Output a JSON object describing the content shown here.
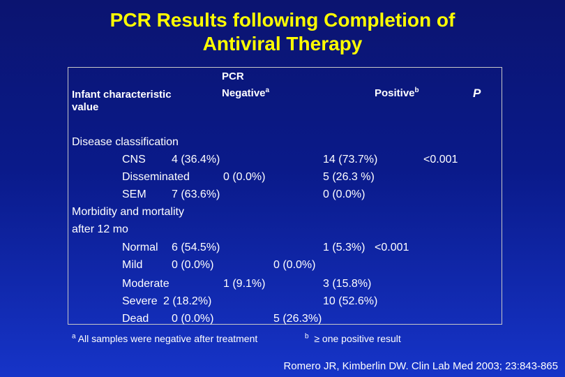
{
  "title": {
    "line1": "PCR Results following Completion of",
    "line2": "Antiviral Therapy"
  },
  "header": {
    "col1_line1": "Infant characteristic",
    "col1_line2": "value",
    "pcr": "PCR",
    "negative": "Negative",
    "negative_sup": "a",
    "positive": "Positive",
    "positive_sup": "b",
    "p": "P"
  },
  "sections": {
    "disease": "Disease classification",
    "morbidity_line1": "Morbidity and mortality",
    "morbidity_line2": "after 12 mo"
  },
  "rows": {
    "cns": {
      "label": "CNS",
      "neg": "4 (36.4%)",
      "pos": "14 (73.7%)",
      "p": "<0.001"
    },
    "disseminated": {
      "label": "Disseminated",
      "neg": "0 (0.0%)",
      "pos": "5 (26.3 %)"
    },
    "sem": {
      "label": "SEM",
      "neg": "7 (63.6%)",
      "pos": "0 (0.0%)"
    },
    "normal": {
      "label": "Normal",
      "neg": "6 (54.5%)",
      "pos": "1 (5.3%)",
      "p": "<0.001"
    },
    "mild": {
      "label": "Mild",
      "neg": "0 (0.0%)",
      "pos": "0 (0.0%)"
    },
    "moderate": {
      "label": "Moderate",
      "neg": "1 (9.1%)",
      "pos": "3 (15.8%)"
    },
    "severe": {
      "label": "Severe",
      "neg": "2 (18.2%)",
      "pos": "10 (52.6%)"
    },
    "dead": {
      "label": "Dead",
      "neg": "0 (0.0%)",
      "pos": "5 (26.3%)"
    }
  },
  "footnotes": {
    "a_sup": "a",
    "a_text": "All samples were negative after treatment",
    "b_sup": "b",
    "b_symbol": "≥",
    "b_text": "one positive result"
  },
  "citation": "Romero JR, Kimberlin DW. Clin Lab Med 2003; 23:843-865"
}
